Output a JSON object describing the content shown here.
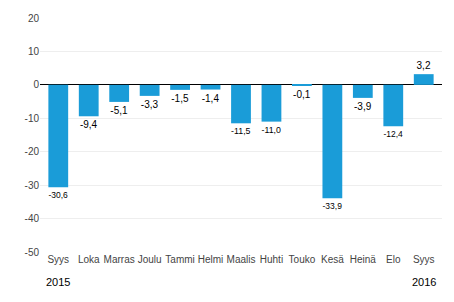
{
  "chart_data": {
    "type": "bar",
    "categories": [
      "Syys",
      "Loka",
      "Marras",
      "Joulu",
      "Tammi",
      "Helmi",
      "Maalis",
      "Huhti",
      "Touko",
      "Kesä",
      "Heinä",
      "Elo",
      "Syys"
    ],
    "values": [
      -30.6,
      -9.4,
      -5.1,
      -3.3,
      -1.5,
      -1.4,
      -11.5,
      -11.0,
      -0.1,
      -33.9,
      -3.9,
      -12.4,
      3.2
    ],
    "value_labels": [
      "-30,6",
      "-9,4",
      "-5,1",
      "-3,3",
      "-1,5",
      "-1,4",
      "-11,5",
      "-11,0",
      "-0,1",
      "-33,9",
      "-3,9",
      "-12,4",
      "3,2"
    ],
    "data_labels": true,
    "color": "#1a9cd8",
    "ylim": [
      -50,
      20
    ],
    "yticks": [
      -50,
      -40,
      -30,
      -20,
      -10,
      0,
      10,
      20
    ],
    "grid": true,
    "annotations": [
      {
        "label": "2015",
        "index": 0
      },
      {
        "label": "2016",
        "index": 12
      }
    ]
  }
}
